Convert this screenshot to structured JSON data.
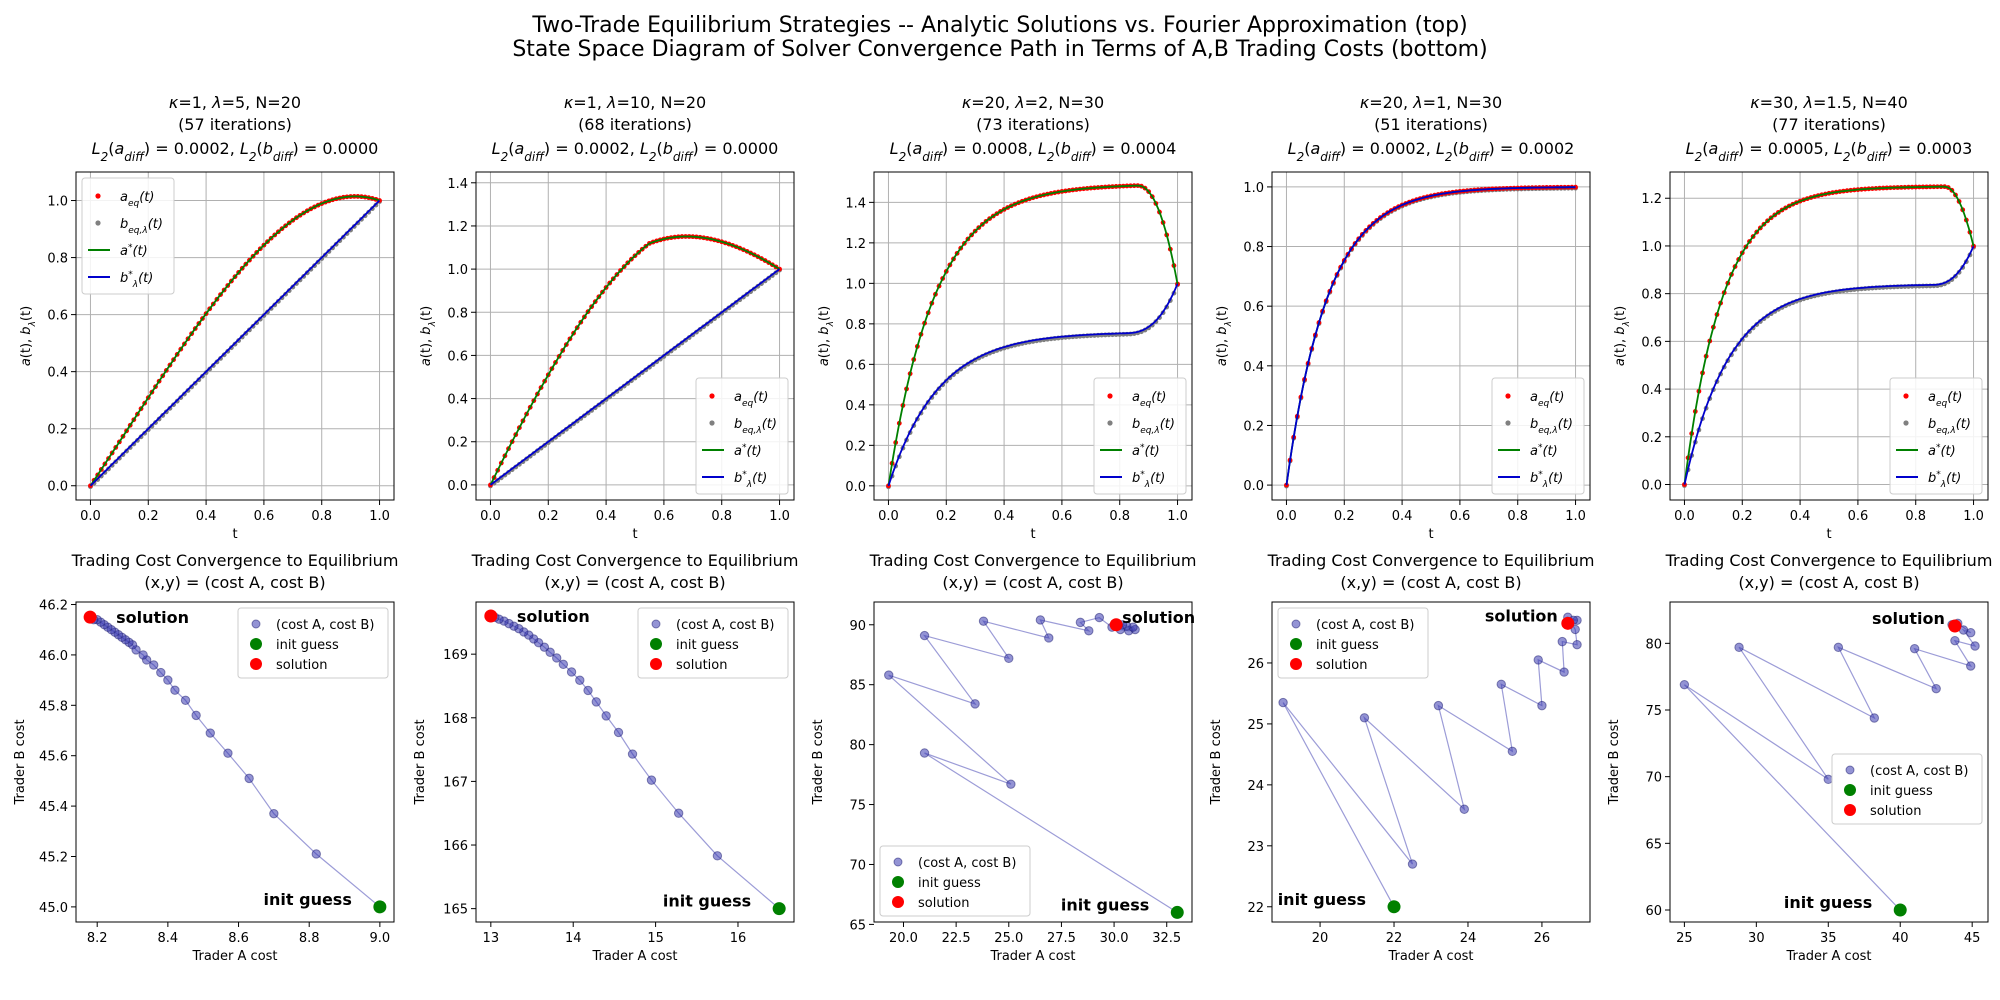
{
  "suptitle": {
    "line1": "Two-Trade Equilibrium Strategies -- Analytic Solutions vs. Fourier Approximation (top)",
    "line2": "State Space Diagram of Solver Convergence Path in Terms of A,B Trading Costs (bottom)"
  },
  "colors": {
    "a_eq": "#ff0000",
    "b_eq": "#808080",
    "a_star": "#008000",
    "b_star": "#0000cc",
    "path": "#3a3ab0",
    "init": "#008000",
    "solution": "#ff0000",
    "grid": "#b0b0b0"
  },
  "legend_top": {
    "a_eq": "a_eq(t)",
    "b_eq": "b_eq,λ(t)",
    "a_star": "a*(t)",
    "b_star": "b*_λ(t)"
  },
  "legend_bottom": {
    "path": "(cost A, cost B)",
    "init": "init guess",
    "solution": "solution"
  },
  "chart_data": [
    {
      "type": "line",
      "title": [
        "κ=1, λ=5, N=20",
        "(57 iterations)",
        "L2(a_diff) = 0.0002, L2(b_diff) = 0.0000"
      ],
      "xlabel": "t",
      "ylabel": "a(t), b_λ(t)",
      "kappa": 1,
      "lambda": 5,
      "xlim": [
        -0.05,
        1.05
      ],
      "ylim": [
        -0.05,
        1.1
      ],
      "xticks": [
        0.0,
        0.2,
        0.4,
        0.6,
        0.8,
        1.0
      ],
      "xticklabels": [
        "0.0",
        "0.2",
        "0.4",
        "0.6",
        "0.8",
        "1.0"
      ],
      "yticks": [
        0.0,
        0.2,
        0.4,
        0.6,
        0.8,
        1.0
      ],
      "yticklabels": [
        "0.0",
        "0.2",
        "0.4",
        "0.6",
        "0.8",
        "1.0"
      ],
      "legend": "upper left"
    },
    {
      "type": "line",
      "title": [
        "κ=1, λ=10, N=20",
        "(68 iterations)",
        "L2(a_diff) = 0.0002, L2(b_diff) = 0.0000"
      ],
      "xlabel": "t",
      "ylabel": "a(t), b_λ(t)",
      "kappa": 1,
      "lambda": 10,
      "xlim": [
        -0.05,
        1.05
      ],
      "ylim": [
        -0.07,
        1.45
      ],
      "xticks": [
        0.0,
        0.2,
        0.4,
        0.6,
        0.8,
        1.0
      ],
      "xticklabels": [
        "0.0",
        "0.2",
        "0.4",
        "0.6",
        "0.8",
        "1.0"
      ],
      "yticks": [
        0.0,
        0.2,
        0.4,
        0.6,
        0.8,
        1.0,
        1.2,
        1.4
      ],
      "yticklabels": [
        "0.0",
        "0.2",
        "0.4",
        "0.6",
        "0.8",
        "1.0",
        "1.2",
        "1.4"
      ],
      "legend": "lower right"
    },
    {
      "type": "line",
      "title": [
        "κ=20, λ=2, N=30",
        "(73 iterations)",
        "L2(a_diff) = 0.0008, L2(b_diff) = 0.0004"
      ],
      "xlabel": "t",
      "ylabel": "a(t), b_λ(t)",
      "kappa": 20,
      "lambda": 2,
      "xlim": [
        -0.05,
        1.05
      ],
      "ylim": [
        -0.07,
        1.55
      ],
      "xticks": [
        0.0,
        0.2,
        0.4,
        0.6,
        0.8,
        1.0
      ],
      "xticklabels": [
        "0.0",
        "0.2",
        "0.4",
        "0.6",
        "0.8",
        "1.0"
      ],
      "yticks": [
        0.0,
        0.2,
        0.4,
        0.6,
        0.8,
        1.0,
        1.2,
        1.4
      ],
      "yticklabels": [
        "0.0",
        "0.2",
        "0.4",
        "0.6",
        "0.8",
        "1.0",
        "1.2",
        "1.4"
      ],
      "legend": "lower right"
    },
    {
      "type": "line",
      "title": [
        "κ=20, λ=1, N=30",
        "(51 iterations)",
        "L2(a_diff) = 0.0002, L2(b_diff) = 0.0002"
      ],
      "xlabel": "t",
      "ylabel": "a(t), b_λ(t)",
      "kappa": 20,
      "lambda": 1,
      "xlim": [
        -0.05,
        1.05
      ],
      "ylim": [
        -0.05,
        1.05
      ],
      "xticks": [
        0.0,
        0.2,
        0.4,
        0.6,
        0.8,
        1.0
      ],
      "xticklabels": [
        "0.0",
        "0.2",
        "0.4",
        "0.6",
        "0.8",
        "1.0"
      ],
      "yticks": [
        0.0,
        0.2,
        0.4,
        0.6,
        0.8,
        1.0
      ],
      "yticklabels": [
        "0.0",
        "0.2",
        "0.4",
        "0.6",
        "0.8",
        "1.0"
      ],
      "legend": "lower right"
    },
    {
      "type": "line",
      "title": [
        "κ=30, λ=1.5, N=40",
        "(77 iterations)",
        "L2(a_diff) = 0.0005, L2(b_diff) = 0.0003"
      ],
      "xlabel": "t",
      "ylabel": "a(t), b_λ(t)",
      "kappa": 30,
      "lambda": 1.5,
      "xlim": [
        -0.05,
        1.05
      ],
      "ylim": [
        -0.065,
        1.31
      ],
      "xticks": [
        0.0,
        0.2,
        0.4,
        0.6,
        0.8,
        1.0
      ],
      "xticklabels": [
        "0.0",
        "0.2",
        "0.4",
        "0.6",
        "0.8",
        "1.0"
      ],
      "yticks": [
        0.0,
        0.2,
        0.4,
        0.6,
        0.8,
        1.0,
        1.2
      ],
      "yticklabels": [
        "0.0",
        "0.2",
        "0.4",
        "0.6",
        "0.8",
        "1.0",
        "1.2"
      ],
      "legend": "lower right"
    },
    {
      "type": "scatter",
      "title": [
        "Trading Cost Convergence to Equilibrium",
        "(x,y) = (cost A, cost B)"
      ],
      "xlabel": "Trader A cost",
      "ylabel": "Trader B cost",
      "xlim": [
        8.14,
        9.04
      ],
      "ylim": [
        44.94,
        46.21
      ],
      "xticks": [
        8.2,
        8.4,
        8.6,
        8.8,
        9.0
      ],
      "xticklabels": [
        "8.2",
        "8.4",
        "8.6",
        "8.8",
        "9.0"
      ],
      "yticks": [
        45.0,
        45.2,
        45.4,
        45.6,
        45.8,
        46.0,
        46.2
      ],
      "yticklabels": [
        "45.0",
        "45.2",
        "45.4",
        "45.6",
        "45.8",
        "46.0",
        "46.2"
      ],
      "init": [
        9.0,
        45.0
      ],
      "solution": [
        8.18,
        46.15
      ],
      "path": [
        [
          9.0,
          45.0
        ],
        [
          8.82,
          45.21
        ],
        [
          8.7,
          45.37
        ],
        [
          8.63,
          45.51
        ],
        [
          8.57,
          45.61
        ],
        [
          8.52,
          45.69
        ],
        [
          8.48,
          45.76
        ],
        [
          8.45,
          45.82
        ],
        [
          8.42,
          45.86
        ],
        [
          8.4,
          45.9
        ],
        [
          8.38,
          45.93
        ],
        [
          8.36,
          45.96
        ],
        [
          8.34,
          45.98
        ],
        [
          8.33,
          46.0
        ],
        [
          8.31,
          46.02
        ],
        [
          8.3,
          46.04
        ],
        [
          8.29,
          46.05
        ],
        [
          8.28,
          46.06
        ],
        [
          8.27,
          46.07
        ],
        [
          8.26,
          46.08
        ],
        [
          8.25,
          46.09
        ],
        [
          8.24,
          46.1
        ],
        [
          8.23,
          46.11
        ],
        [
          8.22,
          46.12
        ],
        [
          8.21,
          46.13
        ],
        [
          8.2,
          46.14
        ],
        [
          8.19,
          46.14
        ],
        [
          8.18,
          46.15
        ]
      ],
      "init_label": "init guess",
      "solution_label": "solution",
      "legend": "upper right"
    },
    {
      "type": "scatter",
      "title": [
        "Trading Cost Convergence to Equilibrium",
        "(x,y) = (cost A, cost B)"
      ],
      "xlabel": "Trader A cost",
      "ylabel": "Trader B cost",
      "xlim": [
        12.82,
        16.68
      ],
      "ylim": [
        164.79,
        169.82
      ],
      "xticks": [
        13,
        14,
        15,
        16
      ],
      "xticklabels": [
        "13",
        "14",
        "15",
        "16"
      ],
      "yticks": [
        165,
        166,
        167,
        168,
        169
      ],
      "yticklabels": [
        "165",
        "166",
        "167",
        "168",
        "169"
      ],
      "init": [
        16.5,
        165.0
      ],
      "solution": [
        13.0,
        169.6
      ],
      "path": [
        [
          16.5,
          165.0
        ],
        [
          15.75,
          165.83
        ],
        [
          15.28,
          166.5
        ],
        [
          14.95,
          167.02
        ],
        [
          14.72,
          167.43
        ],
        [
          14.55,
          167.77
        ],
        [
          14.4,
          168.03
        ],
        [
          14.28,
          168.25
        ],
        [
          14.18,
          168.43
        ],
        [
          14.08,
          168.59
        ],
        [
          13.98,
          168.72
        ],
        [
          13.88,
          168.84
        ],
        [
          13.8,
          168.94
        ],
        [
          13.72,
          169.03
        ],
        [
          13.65,
          169.11
        ],
        [
          13.58,
          169.18
        ],
        [
          13.52,
          169.24
        ],
        [
          13.46,
          169.3
        ],
        [
          13.4,
          169.35
        ],
        [
          13.34,
          169.4
        ],
        [
          13.28,
          169.44
        ],
        [
          13.22,
          169.48
        ],
        [
          13.16,
          169.52
        ],
        [
          13.1,
          169.55
        ],
        [
          13.05,
          169.58
        ],
        [
          13.0,
          169.6
        ]
      ],
      "init_label": "init guess",
      "solution_label": "solution",
      "legend": "upper right"
    },
    {
      "type": "scatter",
      "title": [
        "Trading Cost Convergence to Equilibrium",
        "(x,y) = (cost A, cost B)"
      ],
      "xlabel": "Trader A cost",
      "ylabel": "Trader B cost",
      "xlim": [
        18.6,
        33.7
      ],
      "ylim": [
        65.2,
        91.9
      ],
      "xticks": [
        20.0,
        22.5,
        25.0,
        27.5,
        30.0,
        32.5
      ],
      "xticklabels": [
        "20.0",
        "22.5",
        "25.0",
        "27.5",
        "30.0",
        "32.5"
      ],
      "yticks": [
        65,
        70,
        75,
        80,
        85,
        90
      ],
      "yticklabels": [
        "65",
        "70",
        "75",
        "80",
        "85",
        "90"
      ],
      "init": [
        33.0,
        66.0
      ],
      "solution": [
        30.1,
        90.0
      ],
      "path": [
        [
          33.0,
          66.0
        ],
        [
          21.0,
          79.3
        ],
        [
          25.1,
          76.7
        ],
        [
          19.3,
          85.8
        ],
        [
          23.4,
          83.4
        ],
        [
          21.0,
          89.1
        ],
        [
          25.0,
          87.2
        ],
        [
          23.8,
          90.3
        ],
        [
          26.9,
          88.9
        ],
        [
          26.5,
          90.4
        ],
        [
          28.8,
          89.5
        ],
        [
          28.4,
          90.2
        ],
        [
          29.3,
          90.6
        ],
        [
          29.9,
          89.8
        ],
        [
          30.3,
          89.6
        ],
        [
          30.7,
          89.5
        ],
        [
          31.0,
          89.6
        ],
        [
          30.9,
          89.8
        ],
        [
          30.6,
          89.9
        ],
        [
          30.4,
          90.0
        ],
        [
          30.2,
          90.0
        ],
        [
          30.1,
          90.0
        ]
      ],
      "init_label": "init guess",
      "solution_label": "solution",
      "legend": "lower left"
    },
    {
      "type": "scatter",
      "title": [
        "Trading Cost Convergence to Equilibrium",
        "(x,y) = (cost A, cost B)"
      ],
      "xlabel": "Trader A cost",
      "ylabel": "Trader B cost",
      "xlim": [
        18.7,
        27.3
      ],
      "ylim": [
        21.75,
        27.0
      ],
      "xticks": [
        20,
        22,
        24,
        26
      ],
      "xticklabels": [
        "20",
        "22",
        "24",
        "26"
      ],
      "yticks": [
        22,
        23,
        24,
        25,
        26
      ],
      "yticklabels": [
        "22",
        "23",
        "24",
        "25",
        "26"
      ],
      "init": [
        22.0,
        22.0
      ],
      "solution": [
        26.7,
        26.65
      ],
      "path": [
        [
          22.0,
          22.0
        ],
        [
          19.0,
          25.35
        ],
        [
          22.5,
          22.7
        ],
        [
          21.2,
          25.1
        ],
        [
          23.9,
          23.6
        ],
        [
          23.2,
          25.3
        ],
        [
          25.2,
          24.55
        ],
        [
          24.9,
          25.65
        ],
        [
          26.0,
          25.3
        ],
        [
          25.9,
          26.05
        ],
        [
          26.6,
          25.85
        ],
        [
          26.55,
          26.35
        ],
        [
          26.95,
          26.3
        ],
        [
          26.9,
          26.55
        ],
        [
          26.7,
          26.75
        ],
        [
          26.95,
          26.7
        ],
        [
          26.85,
          26.7
        ],
        [
          26.7,
          26.65
        ]
      ],
      "init_label": "init guess",
      "solution_label": "solution",
      "legend": "upper left"
    },
    {
      "type": "scatter",
      "title": [
        "Trading Cost Convergence to Equilibrium",
        "(x,y) = (cost A, cost B)"
      ],
      "xlabel": "Trader A cost",
      "ylabel": "Trader B cost",
      "xlim": [
        24.0,
        46.1
      ],
      "ylim": [
        59.1,
        83.1
      ],
      "xticks": [
        25,
        30,
        35,
        40,
        45
      ],
      "xticklabels": [
        "25",
        "30",
        "35",
        "40",
        "45"
      ],
      "yticks": [
        60,
        65,
        70,
        75,
        80
      ],
      "yticklabels": [
        "60",
        "65",
        "70",
        "75",
        "80"
      ],
      "init": [
        40.0,
        60.0
      ],
      "solution": [
        43.8,
        81.3
      ],
      "path": [
        [
          40.0,
          60.0
        ],
        [
          25.0,
          76.9
        ],
        [
          35.0,
          69.8
        ],
        [
          28.8,
          79.7
        ],
        [
          38.2,
          74.4
        ],
        [
          35.7,
          79.7
        ],
        [
          42.5,
          76.6
        ],
        [
          41.0,
          79.6
        ],
        [
          44.9,
          78.3
        ],
        [
          43.8,
          80.2
        ],
        [
          45.2,
          79.8
        ],
        [
          44.4,
          81.0
        ],
        [
          44.9,
          80.8
        ],
        [
          44.0,
          81.5
        ],
        [
          43.6,
          81.4
        ],
        [
          43.9,
          81.3
        ],
        [
          43.8,
          81.3
        ]
      ],
      "init_label": "init guess",
      "solution_label": "solution",
      "legend": "center right"
    }
  ]
}
